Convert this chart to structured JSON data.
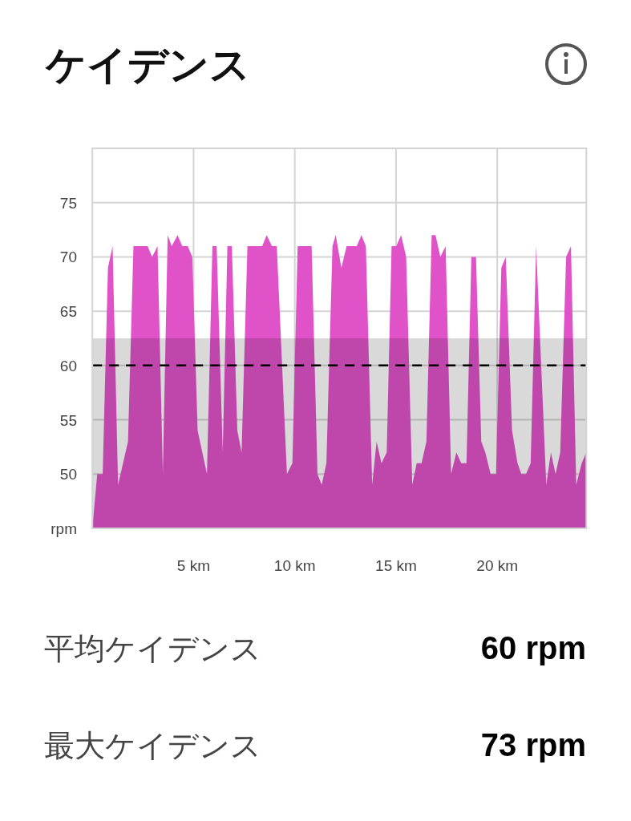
{
  "chart_data": {
    "type": "area",
    "title": "ケイデンス",
    "x": [
      0,
      0.24,
      0.51,
      0.77,
      1.0,
      1.27,
      1.76,
      2.03,
      2.73,
      2.95,
      3.22,
      3.48,
      3.72,
      3.92,
      4.21,
      4.44,
      4.71,
      4.94,
      5.2,
      5.66,
      5.93,
      6.14,
      6.44,
      6.67,
      6.89,
      7.16,
      7.37,
      7.66,
      8.39,
      8.61,
      8.87,
      9.11,
      9.61,
      9.88,
      10.14,
      10.83,
      11.12,
      11.33,
      11.56,
      11.86,
      12.02,
      12.3,
      12.56,
      13.06,
      13.29,
      13.51,
      13.82,
      14.04,
      14.28,
      14.54,
      14.78,
      15.01,
      15.25,
      15.5,
      15.8,
      16.02,
      16.26,
      16.5,
      16.76,
      16.95,
      17.19,
      17.45,
      17.72,
      17.98,
      18.22,
      18.48,
      18.72,
      18.95,
      19.21,
      19.41,
      19.67,
      19.94,
      20.2,
      20.42,
      20.73,
      21.0,
      21.19,
      21.42,
      21.65,
      21.92,
      22.42,
      22.65,
      22.88,
      23.11,
      23.4,
      23.64,
      23.9,
      24.17,
      24.4
    ],
    "values": [
      45,
      50,
      50,
      69,
      71,
      49,
      53,
      71,
      71,
      70,
      71,
      50,
      72,
      71,
      72,
      71,
      71,
      70,
      54,
      50,
      71,
      71,
      52,
      71,
      71,
      54,
      52,
      71,
      71,
      72,
      71,
      71,
      50,
      51,
      71,
      71,
      50,
      49,
      51,
      71,
      72,
      69,
      71,
      71,
      72,
      71,
      49,
      53,
      51,
      52,
      71,
      71,
      72,
      70,
      49,
      51,
      51,
      53,
      72,
      72,
      70,
      71,
      50,
      52,
      51,
      51,
      70,
      70,
      53,
      52,
      50,
      50,
      69,
      70,
      54,
      51,
      50,
      50,
      51,
      71,
      49,
      52,
      50,
      52,
      70,
      71,
      49,
      51,
      52
    ],
    "color": "#e052c8",
    "xlim": [
      0,
      24.4
    ],
    "ylim": [
      45,
      80
    ],
    "xticks": [
      {
        "value": 5,
        "label": "5 km"
      },
      {
        "value": 10,
        "label": "10 km"
      },
      {
        "value": 15,
        "label": "15 km"
      },
      {
        "value": 20,
        "label": "20 km"
      }
    ],
    "yticks": [
      {
        "value": 45,
        "label": "rpm"
      },
      50,
      55,
      60,
      65,
      70,
      75
    ],
    "grid": true,
    "ref_lines": [
      {
        "axis": "y",
        "value": 60,
        "color": "#000000",
        "line_style": "dashed"
      }
    ],
    "bands": [
      {
        "axis": "y",
        "from": 45,
        "to": 62.5,
        "color": "#d9d9d9"
      }
    ],
    "annotations": [
      "平均ケイデンス",
      "60 rpm",
      "最大ケイデンス",
      "73 rpm"
    ]
  }
}
